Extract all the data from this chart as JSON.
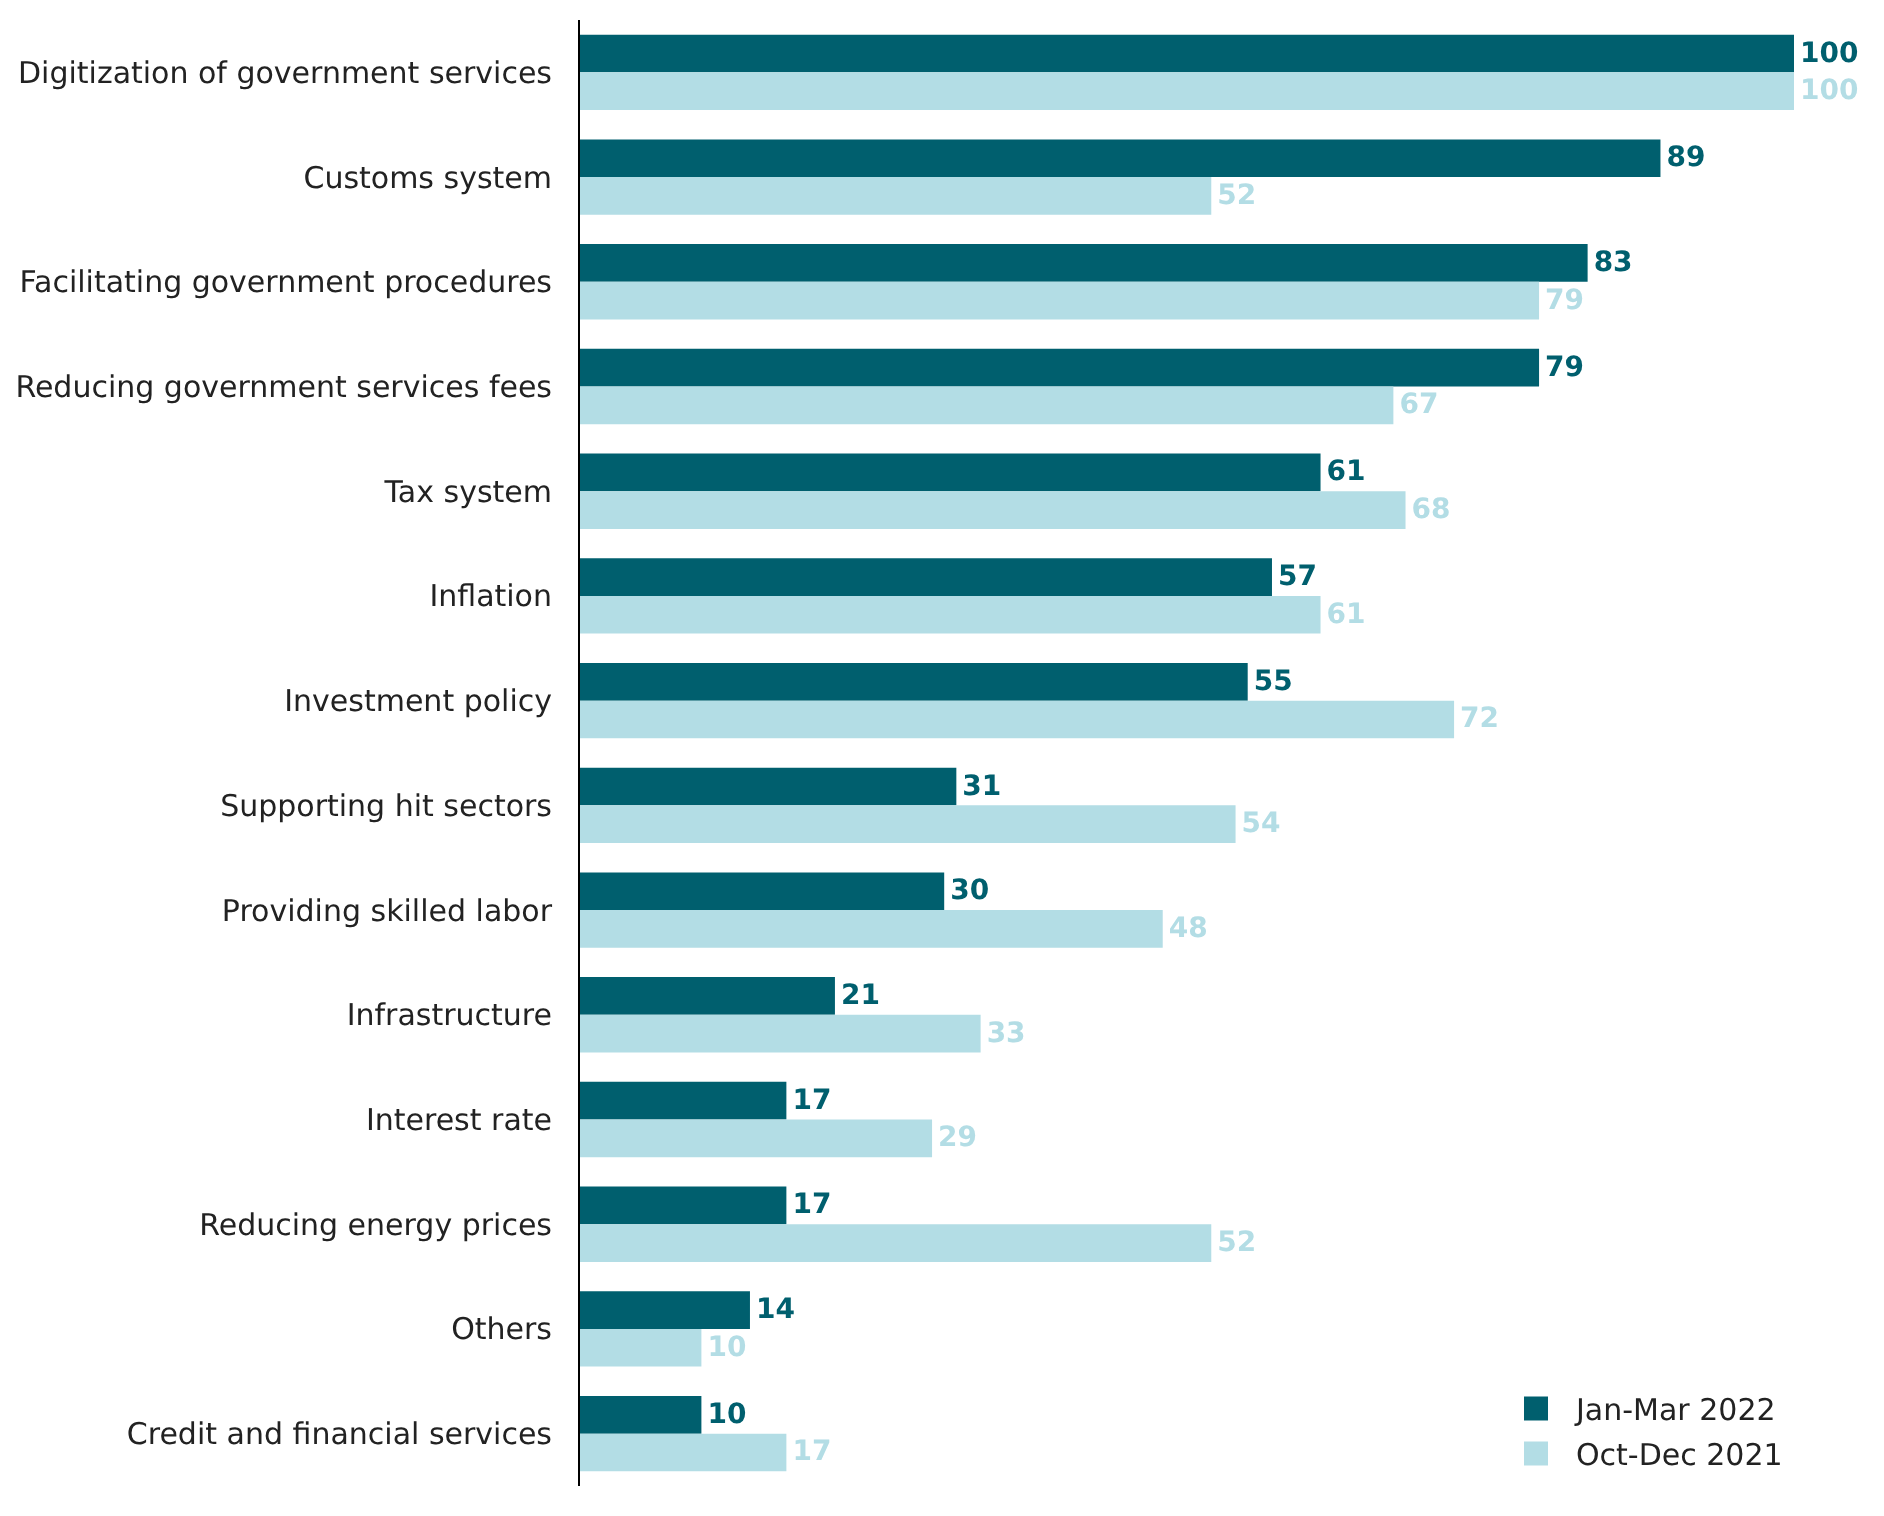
{
  "chart_data": {
    "type": "bar",
    "orientation": "horizontal",
    "categories": [
      "Digitization of government services",
      "Customs system",
      "Facilitating government procedures",
      "Reducing government services fees",
      "Tax system",
      "Inflation",
      "Investment policy",
      "Supporting hit sectors",
      "Providing skilled labor",
      "Infrastructure",
      "Interest rate",
      "Reducing energy prices",
      "Others",
      "Credit and financial services"
    ],
    "series": [
      {
        "name": "Jan-Mar 2022",
        "color": "#005f6e",
        "values": [
          100,
          89,
          83,
          79,
          61,
          57,
          55,
          31,
          30,
          21,
          17,
          17,
          14,
          10
        ]
      },
      {
        "name": "Oct-Dec 2021",
        "color": "#b3dde5",
        "values": [
          100,
          52,
          79,
          67,
          68,
          61,
          72,
          54,
          48,
          33,
          29,
          52,
          10,
          17
        ]
      }
    ],
    "xlim": [
      0,
      100
    ],
    "data_labels": true,
    "tick_labels": "y",
    "grid": false,
    "legend": "bottom right"
  }
}
